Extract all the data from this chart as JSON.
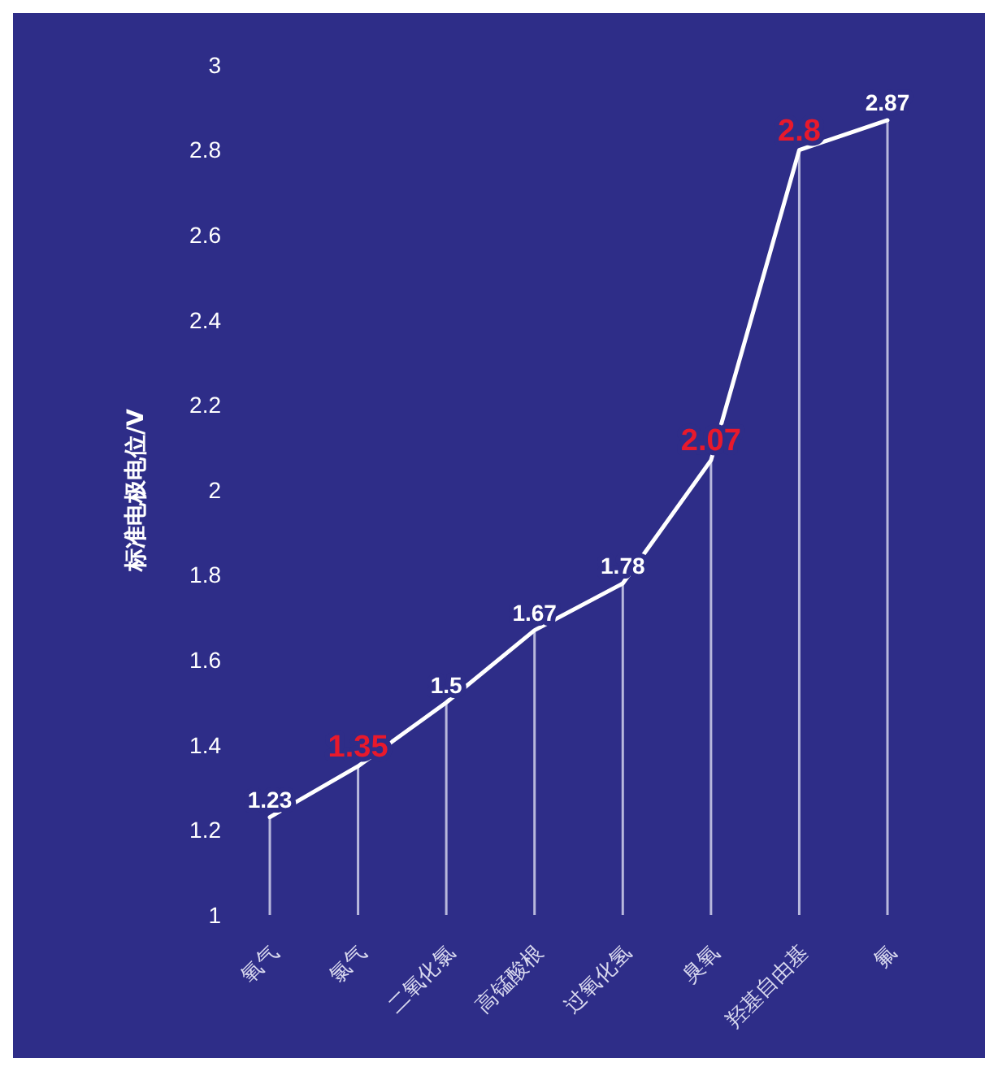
{
  "chart_data": {
    "type": "line",
    "ylabel": "标准电极电位/V",
    "categories": [
      "氧气",
      "氯气",
      "二氧化氯",
      "高锰酸根",
      "过氧化氢",
      "臭氧",
      "羟基自由基",
      "氟"
    ],
    "series": [
      {
        "type": "bar",
        "color": "#b8b8dc",
        "values": [
          1.23,
          1.35,
          1.5,
          1.67,
          1.78,
          2.07,
          2.8,
          2.87
        ]
      },
      {
        "color": "#ffffff",
        "value_labels": [
          "1.23",
          "1.35",
          "1.5",
          "1.67",
          "1.78",
          "2.07",
          "2.8",
          "2.87"
        ],
        "values": [
          1.23,
          1.35,
          1.5,
          1.67,
          1.78,
          2.07,
          2.8,
          2.87
        ],
        "colors": [
          "#ffffff",
          "#e8192c",
          "#ffffff",
          "#ffffff",
          "#ffffff",
          "#e8192c",
          "#e8192c",
          "#ffffff"
        ]
      }
    ],
    "ylim": [
      1,
      3
    ],
    "yticks": [
      1,
      1.2,
      1.4,
      1.6,
      1.8,
      2,
      2.2,
      2.4,
      2.6,
      2.8,
      3
    ],
    "grid": false,
    "line_style": "solid"
  }
}
